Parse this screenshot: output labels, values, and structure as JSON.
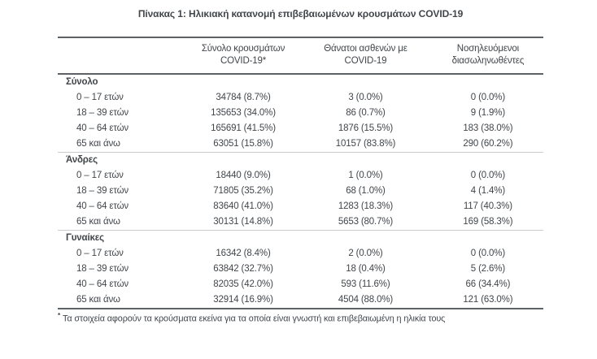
{
  "title": "Πίνακας 1: Ηλικιακή κατανομή επιβεβαιωμένων κρουσμάτων COVID-19",
  "colors": {
    "text": "#41464b",
    "rule_dark": "#5d6266",
    "rule_light": "#c9cdd0",
    "background": "#ffffff"
  },
  "table": {
    "column_headers": [
      {
        "line1": "Σύνολο κρουσμάτων",
        "line2": "COVID-19*"
      },
      {
        "line1": "Θάνατοι ασθενών με",
        "line2": "COVID-19"
      },
      {
        "line1": "Νοσηλευόμενοι",
        "line2": "διασωληνωθέντες"
      }
    ],
    "sections": [
      {
        "label": "Σύνολο",
        "rows": [
          {
            "age": "0 – 17 ετών",
            "cases": "34784 (8.7%)",
            "deaths": "3 (0.0%)",
            "intubated": "0 (0.0%)"
          },
          {
            "age": "18 – 39 ετών",
            "cases": "135653 (34.0%)",
            "deaths": "86 (0.7%)",
            "intubated": "9 (1.9%)"
          },
          {
            "age": "40 – 64 ετών",
            "cases": "165691 (41.5%)",
            "deaths": "1876 (15.5%)",
            "intubated": "183 (38.0%)"
          },
          {
            "age": "65 και άνω",
            "cases": "63051 (15.8%)",
            "deaths": "10157 (83.8%)",
            "intubated": "290 (60.2%)"
          }
        ]
      },
      {
        "label": "Άνδρες",
        "rows": [
          {
            "age": "0 – 17 ετών",
            "cases": "18440 (9.0%)",
            "deaths": "1 (0.0%)",
            "intubated": "0 (0.0%)"
          },
          {
            "age": "18 – 39 ετών",
            "cases": "71805 (35.2%)",
            "deaths": "68 (1.0%)",
            "intubated": "4 (1.4%)"
          },
          {
            "age": "40 – 64 ετών",
            "cases": "83640 (41.0%)",
            "deaths": "1283 (18.3%)",
            "intubated": "117 (40.3%)"
          },
          {
            "age": "65 και άνω",
            "cases": "30131 (14.8%)",
            "deaths": "5653 (80.7%)",
            "intubated": "169 (58.3%)"
          }
        ]
      },
      {
        "label": "Γυναίκες",
        "rows": [
          {
            "age": "0 – 17 ετών",
            "cases": "16342 (8.4%)",
            "deaths": "2 (0.0%)",
            "intubated": "0 (0.0%)"
          },
          {
            "age": "18 – 39 ετών",
            "cases": "63842 (32.7%)",
            "deaths": "18 (0.4%)",
            "intubated": "5 (2.6%)"
          },
          {
            "age": "40 – 64 ετών",
            "cases": "82035 (42.0%)",
            "deaths": "593 (11.6%)",
            "intubated": "66 (34.4%)"
          },
          {
            "age": "65 και άνω",
            "cases": "32914 (16.9%)",
            "deaths": "4504 (88.0%)",
            "intubated": "121 (63.0%)"
          }
        ]
      }
    ]
  },
  "footnote": {
    "marker": "*",
    "text": "Τα στοιχεία αφορούν τα κρούσματα εκείνα για τα οποία είναι γνωστή και επιβεβαιωμένη η ηλικία τους"
  }
}
